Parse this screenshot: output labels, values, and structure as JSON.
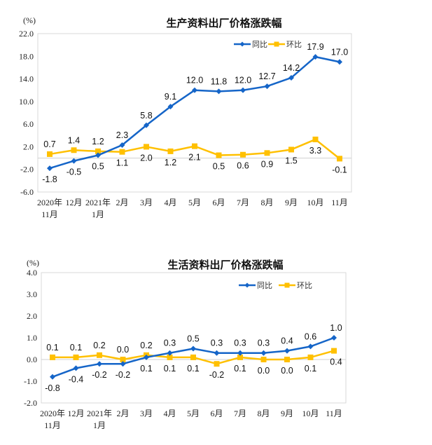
{
  "colors": {
    "yoy": "#1565C8",
    "mom": "#FFC000"
  },
  "chart_data": [
    {
      "type": "line",
      "title": "生产资料出厂价格涨跌幅",
      "ylabel": "(%)",
      "ylim": [
        -6,
        22
      ],
      "yticks": [
        "22.0",
        "18.0",
        "14.0",
        "10.0",
        "6.0",
        "2.0",
        "-2.0",
        "-6.0"
      ],
      "ytick_values": [
        22,
        18,
        14,
        10,
        6,
        2,
        -2,
        -6
      ],
      "categories": [
        [
          "2020年",
          "11月"
        ],
        [
          "12月"
        ],
        [
          "2021年",
          "1月"
        ],
        [
          "2月"
        ],
        [
          "3月"
        ],
        [
          "4月"
        ],
        [
          "5月"
        ],
        [
          "6月"
        ],
        [
          "7月"
        ],
        [
          "8月"
        ],
        [
          "9月"
        ],
        [
          "10月"
        ],
        [
          "11月"
        ]
      ],
      "legend_position": "top-right",
      "series": [
        {
          "name": "同比",
          "values": [
            -1.8,
            -0.5,
            0.5,
            2.3,
            5.8,
            9.1,
            12.0,
            11.8,
            12.0,
            12.7,
            14.2,
            17.9,
            17.0
          ],
          "labels": [
            "-1.8",
            "-0.5",
            "0.5",
            "2.3",
            "5.8",
            "9.1",
            "12.0",
            "11.8",
            "12.0",
            "12.7",
            "14.2",
            "17.9",
            "17.0"
          ]
        },
        {
          "name": "环比",
          "values": [
            0.7,
            1.4,
            1.2,
            1.1,
            2.0,
            1.2,
            2.1,
            0.5,
            0.6,
            0.9,
            1.5,
            3.3,
            -0.1
          ],
          "labels": [
            "0.7",
            "1.4",
            "1.2",
            "1.1",
            "2.0",
            "1.2",
            "2.1",
            "0.5",
            "0.6",
            "0.9",
            "1.5",
            "3.3",
            "-0.1"
          ]
        }
      ]
    },
    {
      "type": "line",
      "title": "生活资料出厂价格涨跌幅",
      "ylabel": "(%)",
      "ylim": [
        -2,
        4
      ],
      "yticks": [
        "4.0",
        "3.0",
        "2.0",
        "1.0",
        "0.0",
        "-1.0",
        "-2.0"
      ],
      "ytick_values": [
        4,
        3,
        2,
        1,
        0,
        -1,
        -2
      ],
      "categories": [
        [
          "2020年",
          "11月"
        ],
        [
          "12月"
        ],
        [
          "2021年",
          "1月"
        ],
        [
          "2月"
        ],
        [
          "3月"
        ],
        [
          "4月"
        ],
        [
          "5月"
        ],
        [
          "6月"
        ],
        [
          "7月"
        ],
        [
          "8月"
        ],
        [
          "9月"
        ],
        [
          "10月"
        ],
        [
          "11月"
        ]
      ],
      "legend_position": "top-right",
      "series": [
        {
          "name": "同比",
          "values": [
            -0.8,
            -0.4,
            -0.2,
            -0.2,
            0.1,
            0.3,
            0.5,
            0.3,
            0.3,
            0.3,
            0.4,
            0.6,
            1.0
          ],
          "labels": [
            "-0.8",
            "-0.4",
            "-0.2",
            "-0.2",
            "0.1",
            "0.3",
            "0.5",
            "0.3",
            "0.3",
            "0.3",
            "0.4",
            "0.6",
            "1.0"
          ]
        },
        {
          "name": "环比",
          "values": [
            0.1,
            0.1,
            0.2,
            0.0,
            0.2,
            0.1,
            0.1,
            -0.2,
            0.1,
            0.0,
            0.0,
            0.1,
            0.4
          ],
          "labels": [
            "0.1",
            "0.1",
            "0.2",
            "0.0",
            "0.2",
            "0.1",
            "0.1",
            "-0.2",
            "0.1",
            "0.0",
            "0.0",
            "0.1",
            "0.4"
          ]
        }
      ]
    }
  ]
}
